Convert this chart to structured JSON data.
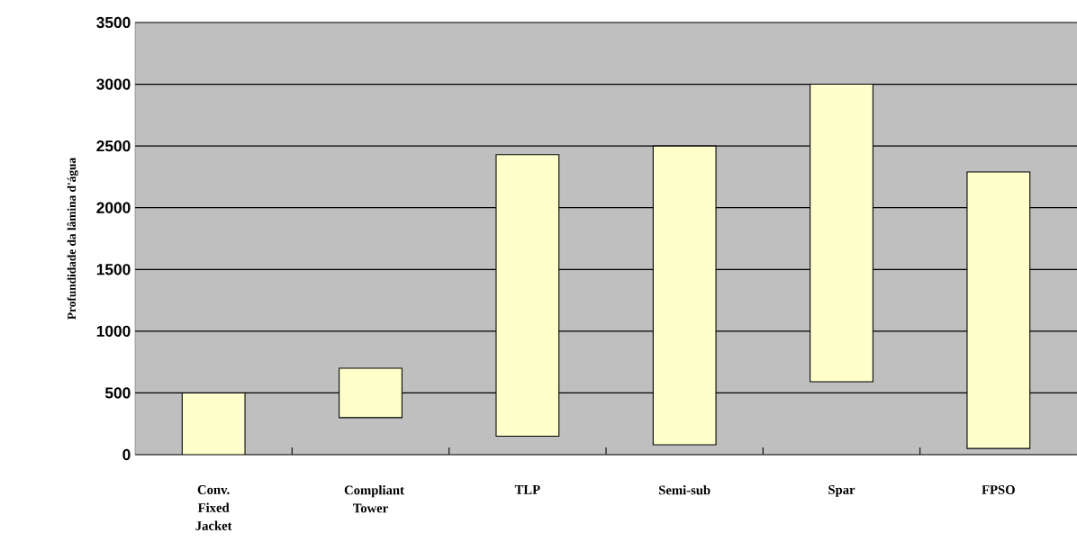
{
  "chart_data": {
    "type": "bar",
    "ylabel": "Profundidade da lâmina d'água",
    "categories": [
      "Conv. Fixed Jacket",
      "Compliant Tower",
      "TLP",
      "Semi-sub",
      "Spar",
      "FPSO"
    ],
    "base": [
      0,
      300,
      150,
      80,
      590,
      50
    ],
    "values": [
      500,
      400,
      2280,
      2420,
      2410,
      2240
    ],
    "color": "#ffffcc",
    "ylim": [
      0,
      3500
    ],
    "yticks": [
      0,
      500,
      1000,
      1500,
      2000,
      2500,
      3000,
      3500
    ],
    "grid": "y"
  }
}
